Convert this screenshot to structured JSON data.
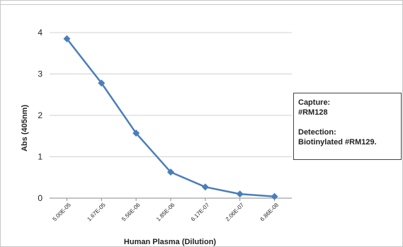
{
  "chart_data": {
    "type": "line",
    "categories": [
      "5.00E-05",
      "1.67E-05",
      "5.56E-06",
      "1.85E-06",
      "6.17E-07",
      "2.06E-07",
      "6.86E-08"
    ],
    "series": [
      {
        "values": [
          3.85,
          2.78,
          1.57,
          0.63,
          0.27,
          0.1,
          0.04
        ],
        "color": "#4a7ebb"
      }
    ],
    "xlabel": "Human Plasma (Dilution)",
    "ylabel": "Abs (405nm)",
    "ylim": [
      0,
      4
    ],
    "yticks": [
      0,
      1,
      2,
      3,
      4
    ],
    "grid": "horizontal",
    "annotation": {
      "line1": "Capture:",
      "line2": "#RM128",
      "line3": "Detection:",
      "line4": "Biotinylated #RM129."
    }
  }
}
